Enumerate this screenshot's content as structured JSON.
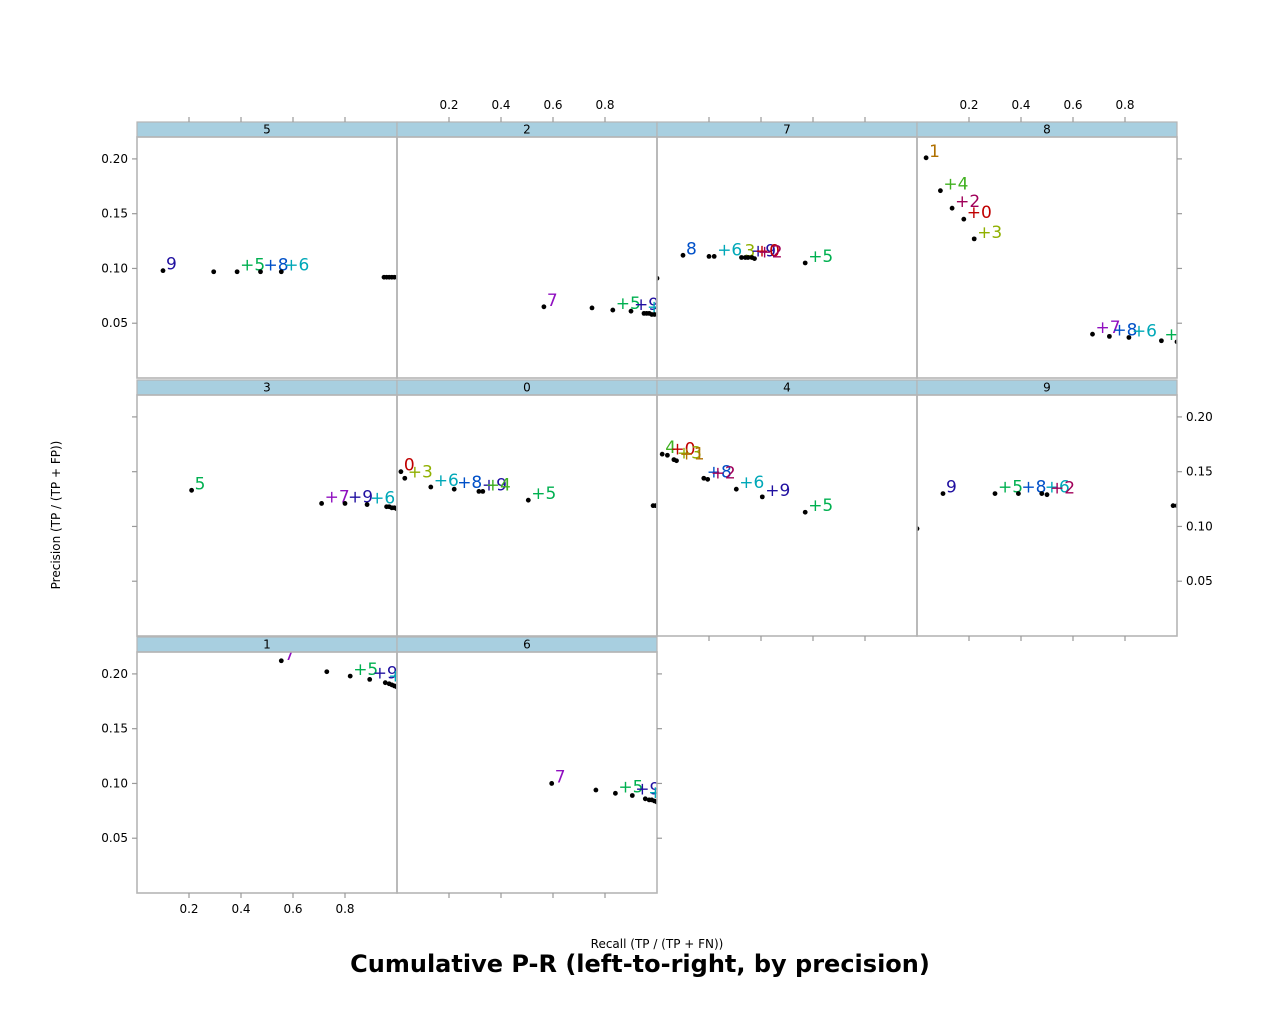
{
  "chart_data": {
    "type": "scatter",
    "title": "Cumulative P-R (left-to-right, by precision)",
    "xlabel": "Recall (TP / (TP + FN))",
    "ylabel": "Precision (TP / (TP + FP))",
    "xlim": [
      0,
      1
    ],
    "ylim": [
      0,
      0.22
    ],
    "x_ticks": [
      0.2,
      0.4,
      0.6,
      0.8
    ],
    "x_tick_labels": [
      "0.2",
      "0.4",
      "0.6",
      "0.8"
    ],
    "y_ticks": [
      0.05,
      0.1,
      0.15,
      0.2
    ],
    "y_tick_labels": [
      "0.05",
      "0.10",
      "0.15",
      "0.20"
    ],
    "layout": "lattice 4 columns x 3 rows, panels fill from bottom-left",
    "strip_color": "#a8cfe0",
    "label_colors": {
      "0": "#c00000",
      "1": "#b07000",
      "2": "#a0005a",
      "3": "#90b000",
      "4": "#40b020",
      "5": "#00b050",
      "6": "#00a8b8",
      "7": "#9010c0",
      "8": "#0050c8",
      "9": "#2010a0"
    },
    "panels": [
      {
        "name": "5",
        "points": [
          {
            "x": 0.1,
            "y": 0.098,
            "label": "9"
          },
          {
            "x": 0.295,
            "y": 0.097
          },
          {
            "x": 0.385,
            "y": 0.097,
            "label": "+5"
          },
          {
            "x": 0.475,
            "y": 0.097,
            "label": "+8"
          },
          {
            "x": 0.555,
            "y": 0.097,
            "label": "+6"
          },
          {
            "x": 0.95,
            "y": 0.092
          },
          {
            "x": 0.96,
            "y": 0.092
          },
          {
            "x": 0.97,
            "y": 0.092
          },
          {
            "x": 0.98,
            "y": 0.092
          },
          {
            "x": 0.99,
            "y": 0.092
          },
          {
            "x": 1.0,
            "y": 0.092
          }
        ]
      },
      {
        "name": "2",
        "points": [
          {
            "x": 0.565,
            "y": 0.065,
            "label": "7"
          },
          {
            "x": 0.75,
            "y": 0.064
          },
          {
            "x": 0.83,
            "y": 0.062,
            "label": "+5"
          },
          {
            "x": 0.9,
            "y": 0.061,
            "label": "+9"
          },
          {
            "x": 0.95,
            "y": 0.059,
            "label": "+6"
          },
          {
            "x": 0.96,
            "y": 0.059
          },
          {
            "x": 0.97,
            "y": 0.059
          },
          {
            "x": 0.98,
            "y": 0.058
          },
          {
            "x": 0.99,
            "y": 0.058
          },
          {
            "x": 1.0,
            "y": 0.058
          }
        ]
      },
      {
        "name": "7",
        "points": [
          {
            "x": 0.0,
            "y": 0.091
          },
          {
            "x": 0.1,
            "y": 0.112,
            "label": "8"
          },
          {
            "x": 0.2,
            "y": 0.111
          },
          {
            "x": 0.22,
            "y": 0.111,
            "label": "+6"
          },
          {
            "x": 0.325,
            "y": 0.11,
            "label": "3"
          },
          {
            "x": 0.34,
            "y": 0.11
          },
          {
            "x": 0.35,
            "y": 0.11,
            "label": "+9"
          },
          {
            "x": 0.365,
            "y": 0.11,
            "label": "+0"
          },
          {
            "x": 0.375,
            "y": 0.109,
            "label": "+2"
          },
          {
            "x": 0.57,
            "y": 0.105,
            "label": "+5"
          }
        ]
      },
      {
        "name": "8",
        "points": [
          {
            "x": 0.035,
            "y": 0.201,
            "label": "1"
          },
          {
            "x": 0.09,
            "y": 0.171,
            "label": "+4"
          },
          {
            "x": 0.135,
            "y": 0.155,
            "label": "+2"
          },
          {
            "x": 0.18,
            "y": 0.145,
            "label": "+0"
          },
          {
            "x": 0.22,
            "y": 0.127,
            "label": "+3"
          },
          {
            "x": 0.675,
            "y": 0.04,
            "label": "+7"
          },
          {
            "x": 0.74,
            "y": 0.038,
            "label": "+8"
          },
          {
            "x": 0.815,
            "y": 0.037,
            "label": "+6"
          },
          {
            "x": 0.94,
            "y": 0.034,
            "label": "+5"
          },
          {
            "x": 1.0,
            "y": 0.033
          }
        ]
      },
      {
        "name": "3",
        "points": [
          {
            "x": 0.21,
            "y": 0.133,
            "label": "5"
          },
          {
            "x": 0.71,
            "y": 0.121,
            "label": "+7"
          },
          {
            "x": 0.8,
            "y": 0.121,
            "label": "+9"
          },
          {
            "x": 0.885,
            "y": 0.12,
            "label": "+6"
          },
          {
            "x": 0.96,
            "y": 0.118
          },
          {
            "x": 0.97,
            "y": 0.118
          },
          {
            "x": 0.98,
            "y": 0.117
          },
          {
            "x": 0.99,
            "y": 0.117
          },
          {
            "x": 1.0,
            "y": 0.116
          }
        ]
      },
      {
        "name": "0",
        "points": [
          {
            "x": 0.015,
            "y": 0.15,
            "label": "0"
          },
          {
            "x": 0.03,
            "y": 0.144,
            "label": "+3"
          },
          {
            "x": 0.13,
            "y": 0.136,
            "label": "+6"
          },
          {
            "x": 0.22,
            "y": 0.134,
            "label": "+8"
          },
          {
            "x": 0.315,
            "y": 0.132,
            "label": "+9"
          },
          {
            "x": 0.33,
            "y": 0.132,
            "label": "+4"
          },
          {
            "x": 0.505,
            "y": 0.124,
            "label": "+5"
          },
          {
            "x": 0.985,
            "y": 0.119
          },
          {
            "x": 0.995,
            "y": 0.119
          }
        ]
      },
      {
        "name": "4",
        "points": [
          {
            "x": 0.02,
            "y": 0.166,
            "label": "4"
          },
          {
            "x": 0.04,
            "y": 0.165,
            "label": "+0"
          },
          {
            "x": 0.065,
            "y": 0.161,
            "label": "+3"
          },
          {
            "x": 0.075,
            "y": 0.16,
            "label": "+1"
          },
          {
            "x": 0.18,
            "y": 0.144,
            "label": "+8"
          },
          {
            "x": 0.195,
            "y": 0.143,
            "label": "+2"
          },
          {
            "x": 0.305,
            "y": 0.134,
            "label": "+6"
          },
          {
            "x": 0.405,
            "y": 0.127,
            "label": "+9"
          },
          {
            "x": 0.57,
            "y": 0.113,
            "label": "+5"
          }
        ]
      },
      {
        "name": "9",
        "points": [
          {
            "x": 0.0,
            "y": 0.098
          },
          {
            "x": 0.1,
            "y": 0.13,
            "label": "9"
          },
          {
            "x": 0.3,
            "y": 0.13,
            "label": "+5"
          },
          {
            "x": 0.39,
            "y": 0.13,
            "label": "+8"
          },
          {
            "x": 0.48,
            "y": 0.13,
            "label": "+6"
          },
          {
            "x": 0.5,
            "y": 0.129,
            "label": "+2"
          },
          {
            "x": 0.985,
            "y": 0.119
          },
          {
            "x": 1.0,
            "y": 0.119
          }
        ]
      },
      {
        "name": "1",
        "points": [
          {
            "x": 0.555,
            "y": 0.212,
            "label": "7"
          },
          {
            "x": 0.73,
            "y": 0.202
          },
          {
            "x": 0.82,
            "y": 0.198,
            "label": "+5"
          },
          {
            "x": 0.895,
            "y": 0.195,
            "label": "+9"
          },
          {
            "x": 0.955,
            "y": 0.192,
            "label": "+6"
          },
          {
            "x": 0.97,
            "y": 0.191
          },
          {
            "x": 0.98,
            "y": 0.19
          },
          {
            "x": 0.99,
            "y": 0.189
          },
          {
            "x": 1.0,
            "y": 0.188
          }
        ]
      },
      {
        "name": "6",
        "points": [
          {
            "x": 0.595,
            "y": 0.1,
            "label": "7"
          },
          {
            "x": 0.765,
            "y": 0.094
          },
          {
            "x": 0.84,
            "y": 0.091,
            "label": "+5"
          },
          {
            "x": 0.905,
            "y": 0.089,
            "label": "+9"
          },
          {
            "x": 0.955,
            "y": 0.086,
            "label": "+6"
          },
          {
            "x": 0.97,
            "y": 0.085
          },
          {
            "x": 0.98,
            "y": 0.085
          },
          {
            "x": 0.99,
            "y": 0.084
          },
          {
            "x": 1.0,
            "y": 0.083
          }
        ]
      }
    ]
  }
}
